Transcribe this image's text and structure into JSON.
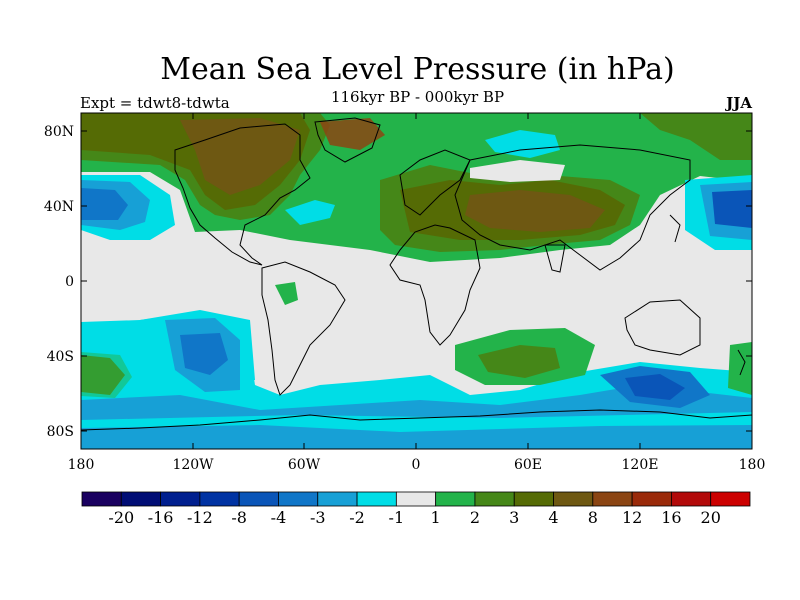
{
  "title": "Mean Sea Level Pressure (in hPa)",
  "subtitle": "116kyr BP - 000kyr BP",
  "left_label": "Expt = tdwt8-tdwta",
  "right_label": "JJA",
  "lat_labels": [
    "80N",
    "40N",
    "0",
    "40S",
    "80S"
  ],
  "lon_labels": [
    "180",
    "120W",
    "60W",
    "0",
    "60E",
    "120E",
    "180"
  ],
  "colorbar": {
    "colors": [
      "#1a0060",
      "#000d75",
      "#001f8f",
      "#0033a3",
      "#0a55b8",
      "#1076c8",
      "#17a0d6",
      "#00dde6",
      "#e8e8e8",
      "#23b34a",
      "#458718",
      "#556b05",
      "#6e5812",
      "#8b4513",
      "#9a2a0a",
      "#b20a0a",
      "#cc0000"
    ],
    "labels": [
      "-20",
      "-16",
      "-12",
      "-8",
      "-4",
      "-3",
      "-2",
      "-1",
      "1",
      "2",
      "3",
      "4",
      "8",
      "12",
      "16",
      "20"
    ]
  }
}
